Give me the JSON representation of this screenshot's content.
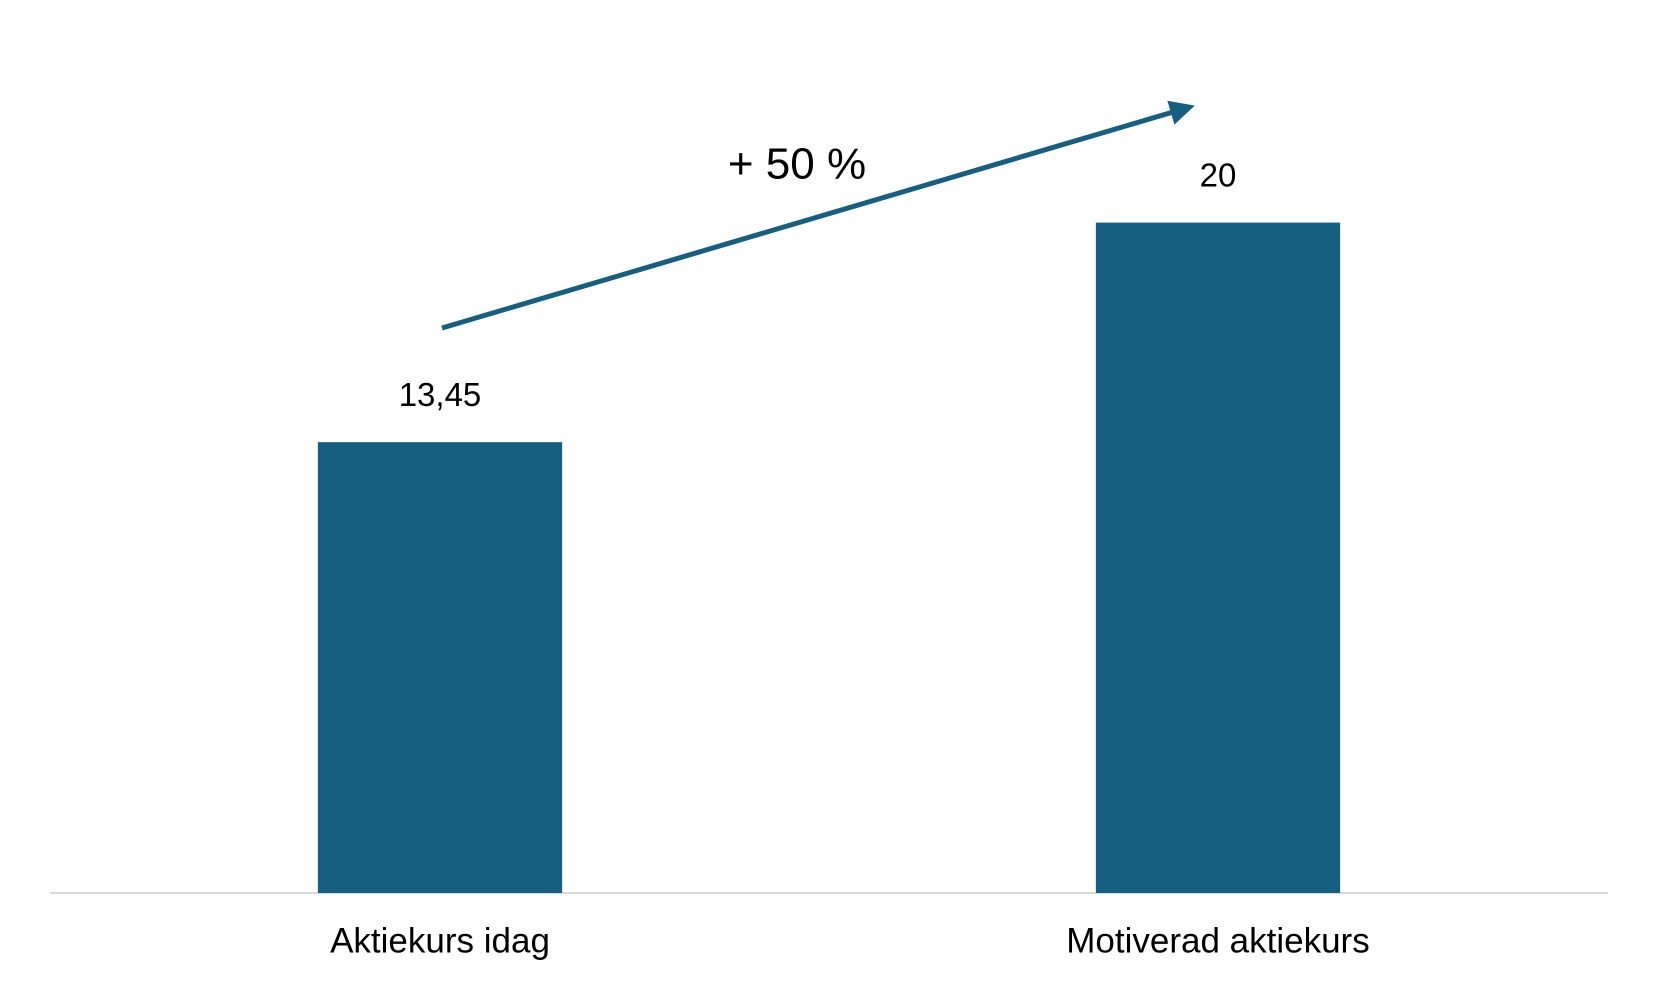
{
  "chart_data": {
    "type": "bar",
    "categories": [
      "Aktiekurs idag",
      "Motiverad aktiekurs"
    ],
    "values": [
      13.45,
      20
    ],
    "value_labels": [
      "13,45",
      "20"
    ],
    "color": "#175f81",
    "ylim": [
      0,
      25
    ],
    "annotation": "+ 50 %"
  }
}
